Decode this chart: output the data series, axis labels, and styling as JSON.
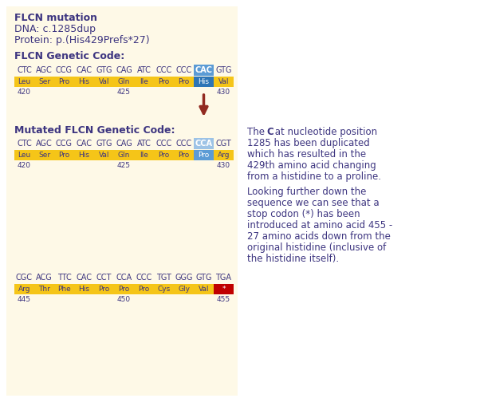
{
  "bg_color": "#ffffff",
  "panel_bg": "#fdf6e3",
  "title_lines": [
    "FLCN mutation",
    "DNA: c.1285dup",
    "Protein: p.(His429Prefs*27)"
  ],
  "title_fontweights": [
    "bold",
    "normal",
    "normal"
  ],
  "section1_title": "FLCN Genetic Code:",
  "section2_title": "Mutated FLCN Genetic Code:",
  "text_color": "#3d3580",
  "codon_row1": [
    "CTC",
    "AGC",
    "CCG",
    "CAC",
    "GTG",
    "CAG",
    "ATC",
    "CCC",
    "CCC",
    "CAC",
    "GTG"
  ],
  "aa_row1": [
    "Leu",
    "Ser",
    "Pro",
    "His",
    "Val",
    "Gln",
    "Ile",
    "Pro",
    "Pro",
    "His",
    "Val"
  ],
  "num_row1": [
    [
      "420",
      0
    ],
    [
      "425",
      5
    ],
    [
      "430",
      10
    ]
  ],
  "highlight_index1": 9,
  "highlight_codon_color1": "#5b9bd5",
  "highlight_aa_color1": "#2e75b6",
  "codon_row2": [
    "CTC",
    "AGC",
    "CCG",
    "CAC",
    "GTG",
    "CAG",
    "ATC",
    "CCC",
    "CCC",
    "CCA",
    "CGT"
  ],
  "aa_row2": [
    "Leu",
    "Ser",
    "Pro",
    "His",
    "Val",
    "Gln",
    "Ile",
    "Pro",
    "Pro",
    "Pro",
    "Arg"
  ],
  "num_row2": [
    [
      "420",
      0
    ],
    [
      "425",
      5
    ],
    [
      "430",
      10
    ]
  ],
  "highlight_index2": 9,
  "highlight_codon_color2": "#9dc3e6",
  "highlight_aa_color2": "#5b9bd5",
  "codon_row3": [
    "CGC",
    "ACG",
    "TTC",
    "CAC",
    "CCT",
    "CCA",
    "CCC",
    "TGT",
    "GGG",
    "GTG",
    "TGA"
  ],
  "aa_row3": [
    "Arg",
    "Thr",
    "Phe",
    "His",
    "Pro",
    "Pro",
    "Pro",
    "Cys",
    "Gly",
    "Val",
    "*"
  ],
  "num_row3": [
    [
      "445",
      0
    ],
    [
      "450",
      5
    ],
    [
      "455",
      10
    ]
  ],
  "highlight_index3": 10,
  "highlight_aa_color3": "#c00000",
  "bar_color": "#f5c518",
  "bar_text_color": "#3d3580",
  "arrow_color": "#922b21",
  "right_text1_parts": [
    {
      "text": "The  ",
      "bold": false
    },
    {
      "text": "C",
      "bold": true
    },
    {
      "text": " at nucleotide position\n1285 has been duplicated\nwhich has resulted in the\n429th amino acid changing\nfrom a histidine to a proline.",
      "bold": false
    }
  ],
  "right_text2": "Looking further down the\nsequence we can see that a\nstop codon (*) has been\nintroduced at amino acid 455 -\n27 amino acids down from the\noriginal histidine (inclusive of\nthe histidine itself).",
  "figsize": [
    6.02,
    5.04
  ],
  "dpi": 100
}
